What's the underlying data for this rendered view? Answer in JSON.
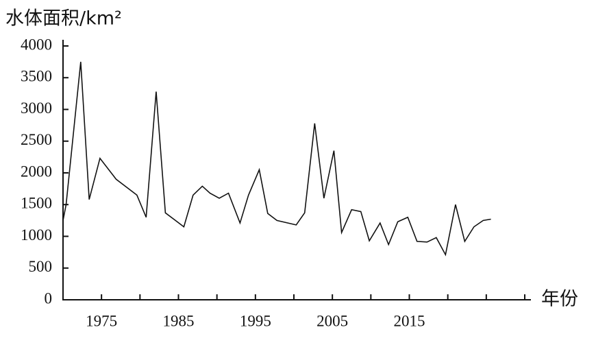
{
  "chart_data": {
    "type": "line",
    "y_label": "水体面积/km²",
    "x_label": "年份",
    "x": [
      1970.0,
      1970.4,
      1972.3,
      1973.4,
      1974.8,
      1976.9,
      1979.6,
      1980.8,
      1982.1,
      1983.3,
      1985.7,
      1986.9,
      1988.1,
      1989.1,
      1990.3,
      1991.5,
      1993.0,
      1994.1,
      1995.5,
      1996.6,
      1997.8,
      2000.3,
      2001.4,
      2002.7,
      2003.9,
      2005.2,
      2006.2,
      2007.5,
      2008.7,
      2009.8,
      2011.2,
      2012.3,
      2013.5,
      2014.8,
      2016.0,
      2017.3,
      2018.5,
      2019.7,
      2021.0,
      2022.2,
      2023.4,
      2024.6,
      2025.6
    ],
    "values": [
      1250,
      1500,
      3750,
      1580,
      2230,
      1900,
      1650,
      1300,
      3280,
      1370,
      1150,
      1650,
      1790,
      1680,
      1600,
      1680,
      1210,
      1650,
      2050,
      1360,
      1250,
      1180,
      1370,
      2780,
      1600,
      2350,
      1060,
      1420,
      1390,
      930,
      1210,
      870,
      1230,
      1300,
      920,
      910,
      980,
      710,
      1500,
      920,
      1150,
      1250,
      1270
    ],
    "color": "#111111",
    "xlim": [
      1970,
      2030.8
    ],
    "xticks": [
      1975,
      1985,
      1995,
      2005,
      2015
    ],
    "x_minor_ticks": [
      1970,
      1975,
      1980,
      1985,
      1990,
      1995,
      2000,
      2005,
      2010,
      2015,
      2020,
      2025,
      2030
    ],
    "ylim": [
      0,
      4000
    ],
    "yticks": [
      0,
      500,
      1000,
      1500,
      2000,
      2500,
      3000,
      3500,
      4000
    ]
  }
}
